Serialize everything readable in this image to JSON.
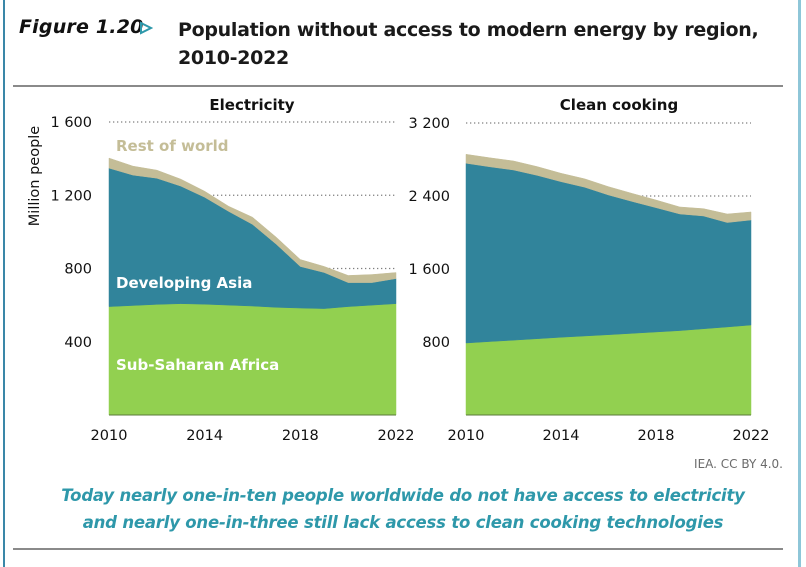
{
  "header": {
    "figure_label": "Figure 1.20",
    "figure_arrow_icon": "triangle-right-outline-icon",
    "title": "Population without access to modern energy by region, 2010-2022"
  },
  "credit": "IEA. CC BY 4.0.",
  "caption": {
    "line1": "Today nearly one-in-ten people worldwide do not have access to electricity",
    "line2": "and nearly one-in-three still lack access to clean cooking technologies"
  },
  "colors": {
    "sub_saharan_africa": "#92d050",
    "developing_asia": "#31849b",
    "rest_of_world": "#c4bd97",
    "accent": "#2e98aa"
  },
  "chart_data": [
    {
      "type": "area",
      "stacked": true,
      "title": "Electricity",
      "xlabel": "",
      "ylabel": "Million people",
      "x": [
        2010,
        2011,
        2012,
        2013,
        2014,
        2015,
        2016,
        2017,
        2018,
        2019,
        2020,
        2021,
        2022
      ],
      "xticks": [
        "2010",
        "2014",
        "2018",
        "2022"
      ],
      "xtick_values": [
        2010,
        2014,
        2018,
        2022
      ],
      "ylim": [
        0,
        1600
      ],
      "yticks": [
        "400",
        "800",
        "1 200",
        "1 600"
      ],
      "ytick_values": [
        400,
        800,
        1200,
        1600
      ],
      "grid": "dotted horizontal",
      "series": [
        {
          "name": "Sub-Saharan Africa",
          "label": "Sub-Saharan Africa",
          "color": "#92d050",
          "values": [
            592,
            598,
            604,
            608,
            605,
            600,
            595,
            588,
            584,
            581,
            592,
            600,
            608
          ]
        },
        {
          "name": "Developing Asia",
          "label": "Developing Asia",
          "color": "#31849b",
          "values": [
            756,
            712,
            689,
            642,
            584,
            512,
            446,
            344,
            227,
            197,
            131,
            123,
            137
          ]
        },
        {
          "name": "Rest of world",
          "label": "Rest of world",
          "color": "#c4bd97",
          "values": [
            55,
            49,
            44,
            38,
            33,
            28,
            39,
            38,
            38,
            33,
            39,
            44,
            33
          ]
        }
      ]
    },
    {
      "type": "area",
      "stacked": true,
      "title": "Clean cooking",
      "xlabel": "",
      "ylabel": "",
      "x": [
        2010,
        2011,
        2012,
        2013,
        2014,
        2015,
        2016,
        2017,
        2018,
        2019,
        2020,
        2021,
        2022
      ],
      "xticks": [
        "2010",
        "2014",
        "2018",
        "2022"
      ],
      "xtick_values": [
        2010,
        2014,
        2018,
        2022
      ],
      "ylim": [
        0,
        3200
      ],
      "yticks": [
        "800",
        "1 600",
        "2 400",
        "3 200"
      ],
      "ytick_values": [
        800,
        1600,
        2400,
        3200
      ],
      "grid": "dotted horizontal",
      "series": [
        {
          "name": "Sub-Saharan Africa",
          "color": "#92d050",
          "values": [
            789,
            805,
            820,
            836,
            852,
            866,
            880,
            895,
            910,
            925,
            945,
            965,
            986
          ]
        },
        {
          "name": "Developing Asia",
          "color": "#31849b",
          "values": [
            1970,
            1915,
            1865,
            1790,
            1705,
            1630,
            1531,
            1445,
            1362,
            1278,
            1236,
            1144,
            1151
          ]
        },
        {
          "name": "Rest of world",
          "color": "#c4bd97",
          "values": [
            98,
            99,
            99,
            96,
            92,
            92,
            91,
            88,
            84,
            77,
            80,
            94,
            88
          ]
        }
      ]
    }
  ]
}
